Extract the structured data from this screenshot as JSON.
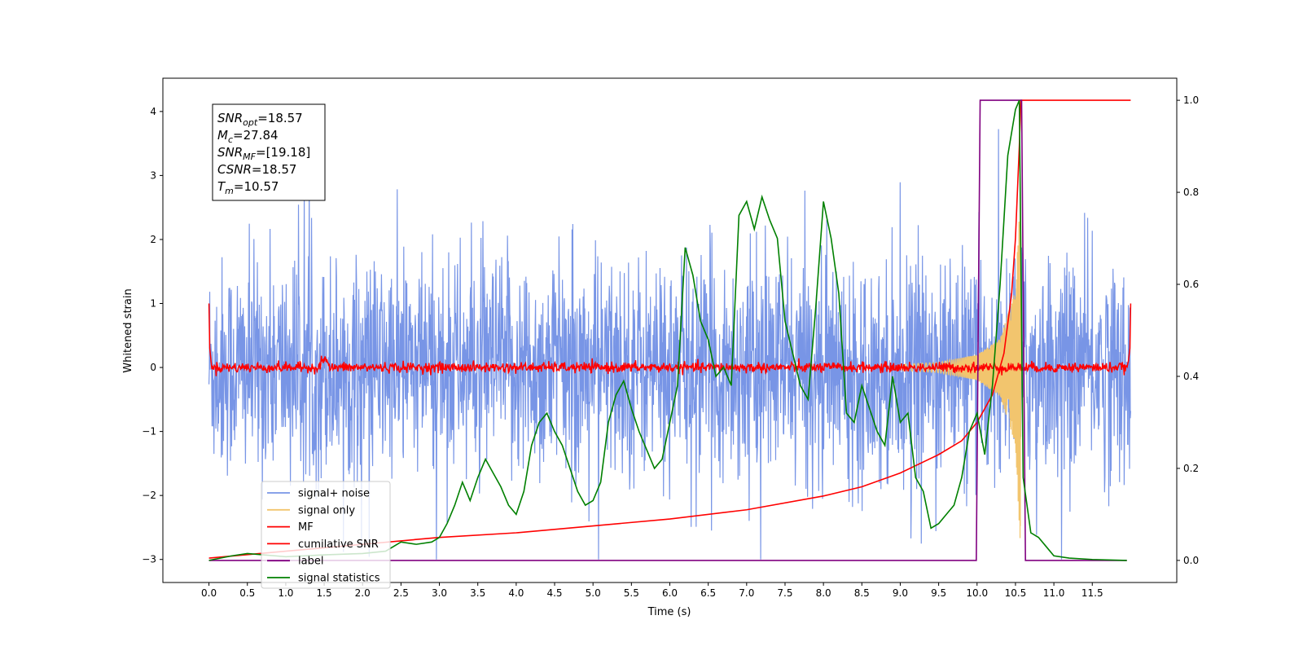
{
  "chart_data": {
    "type": "line",
    "xlabel": "Time (s)",
    "ylabel": "Whitened strain",
    "x_ticks": [
      "0.0",
      "0.5",
      "1.0",
      "1.5",
      "2.0",
      "2.5",
      "3.0",
      "3.5",
      "4.0",
      "4.5",
      "5.0",
      "5.5",
      "6.0",
      "6.5",
      "7.0",
      "7.5",
      "8.0",
      "8.5",
      "9.0",
      "9.5",
      "10.0",
      "10.5",
      "11.0",
      "11.5"
    ],
    "y_ticks_left": [
      "−3",
      "−2",
      "−1",
      "0",
      "1",
      "2",
      "3",
      "4"
    ],
    "y_ticks_right": [
      "0.0",
      "0.2",
      "0.4",
      "0.6",
      "0.8",
      "1.0"
    ],
    "xlim": [
      -0.6,
      12.6
    ],
    "ylim_left": [
      -3.36,
      4.52
    ],
    "ylim_right": [
      -0.048,
      1.048
    ],
    "annotation": [
      {
        "base": "SNR",
        "sub": "opt",
        "rest": "=18.57"
      },
      {
        "base": "M",
        "sub": "c",
        "rest": "=27.84"
      },
      {
        "base": "SNR",
        "sub": "MF",
        "rest": "=[19.18]"
      },
      {
        "base": "CSNR",
        "sub": "",
        "rest": "=18.57"
      },
      {
        "base": "T",
        "sub": "m",
        "rest": "=10.57"
      }
    ],
    "colors": {
      "signal_noise": "#7895e6",
      "signal_only": "#f2c56e",
      "mf": "#ff0000",
      "cumulative_snr": "#ff0000",
      "label": "#800080",
      "signal_statistics": "#008000"
    },
    "series": [
      {
        "name": "signal+ noise",
        "axis": "left",
        "note_range": [
          -3.0,
          4.2
        ],
        "duration": 12.0
      },
      {
        "name": "signal only",
        "axis": "left",
        "x": [
          9.0,
          9.5,
          10.0,
          10.3,
          10.5,
          10.57
        ],
        "amplitude": [
          0.05,
          0.08,
          0.2,
          0.45,
          1.2,
          3.0
        ]
      },
      {
        "name": "MF",
        "axis": "left",
        "x": [
          0.0,
          0.01,
          0.03,
          11.97,
          11.99,
          12.0
        ],
        "y": [
          1.0,
          0.3,
          0.0,
          0.0,
          0.3,
          1.0
        ]
      },
      {
        "name": "cumilative SNR",
        "axis": "right",
        "x": [
          0,
          1,
          2,
          3,
          4,
          5,
          6,
          7,
          8,
          8.5,
          9,
          9.5,
          9.8,
          10,
          10.2,
          10.35,
          10.45,
          10.5,
          10.55,
          10.57,
          12.0
        ],
        "y": [
          0.005,
          0.02,
          0.035,
          0.05,
          0.06,
          0.075,
          0.09,
          0.11,
          0.14,
          0.16,
          0.19,
          0.23,
          0.26,
          0.3,
          0.36,
          0.45,
          0.58,
          0.7,
          0.9,
          1.0,
          1.0
        ]
      },
      {
        "name": "label",
        "axis": "right",
        "x": [
          0,
          9.99,
          10.04,
          10.58,
          10.63,
          11.95
        ],
        "y": [
          0,
          0,
          1,
          1,
          0,
          0
        ]
      },
      {
        "name": "signal statistics",
        "axis": "right",
        "x": [
          0,
          0.3,
          0.5,
          1,
          1.5,
          2,
          2.3,
          2.5,
          2.7,
          2.9,
          3.0,
          3.1,
          3.2,
          3.3,
          3.4,
          3.5,
          3.6,
          3.7,
          3.8,
          3.9,
          4.0,
          4.1,
          4.2,
          4.3,
          4.4,
          4.5,
          4.6,
          4.7,
          4.8,
          4.9,
          5.0,
          5.1,
          5.2,
          5.3,
          5.4,
          5.5,
          5.6,
          5.7,
          5.8,
          5.9,
          6.0,
          6.1,
          6.2,
          6.3,
          6.4,
          6.5,
          6.6,
          6.7,
          6.8,
          6.9,
          7.0,
          7.1,
          7.2,
          7.3,
          7.4,
          7.5,
          7.6,
          7.7,
          7.8,
          7.9,
          8.0,
          8.1,
          8.2,
          8.3,
          8.4,
          8.5,
          8.6,
          8.7,
          8.8,
          8.9,
          9.0,
          9.1,
          9.2,
          9.3,
          9.4,
          9.5,
          9.6,
          9.7,
          9.8,
          9.9,
          10.0,
          10.1,
          10.2,
          10.3,
          10.4,
          10.5,
          10.55,
          10.6,
          10.7,
          10.8,
          10.9,
          11.0,
          11.2,
          11.5,
          11.95
        ],
        "y": [
          0,
          0.01,
          0.015,
          0.008,
          0.012,
          0.015,
          0.02,
          0.04,
          0.035,
          0.04,
          0.05,
          0.08,
          0.12,
          0.17,
          0.13,
          0.18,
          0.22,
          0.19,
          0.16,
          0.12,
          0.1,
          0.15,
          0.25,
          0.3,
          0.32,
          0.28,
          0.25,
          0.2,
          0.15,
          0.12,
          0.13,
          0.17,
          0.3,
          0.36,
          0.39,
          0.33,
          0.28,
          0.24,
          0.2,
          0.22,
          0.3,
          0.38,
          0.68,
          0.62,
          0.52,
          0.48,
          0.4,
          0.42,
          0.38,
          0.75,
          0.78,
          0.72,
          0.79,
          0.74,
          0.7,
          0.52,
          0.45,
          0.38,
          0.35,
          0.55,
          0.78,
          0.7,
          0.58,
          0.32,
          0.3,
          0.38,
          0.33,
          0.28,
          0.25,
          0.4,
          0.3,
          0.32,
          0.18,
          0.15,
          0.07,
          0.08,
          0.1,
          0.12,
          0.18,
          0.28,
          0.32,
          0.23,
          0.38,
          0.6,
          0.88,
          0.98,
          1.0,
          0.18,
          0.06,
          0.05,
          0.03,
          0.01,
          0.005,
          0.002,
          0.0
        ]
      }
    ]
  }
}
